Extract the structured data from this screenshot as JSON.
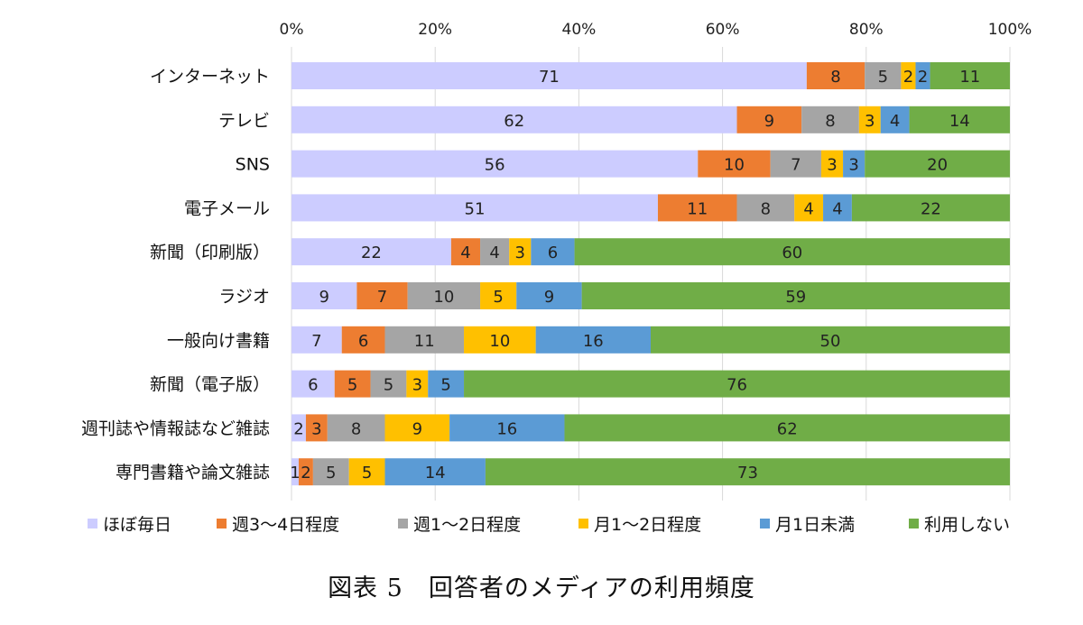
{
  "chart_data": {
    "type": "bar",
    "orientation": "horizontal",
    "stacked": "percent",
    "title": "図表 5　回答者のメディアの利用頻度",
    "categories": [
      "インターネット",
      "テレビ",
      "SNS",
      "電子メール",
      "新聞（印刷版）",
      "ラジオ",
      "一般向け書籍",
      "新聞（電子版）",
      "週刊誌や情報誌など雑誌",
      "専門書籍や論文雑誌"
    ],
    "series": [
      {
        "name": "ほぼ毎日",
        "color": "#CCCCFF",
        "values": [
          71,
          62,
          56,
          51,
          22,
          9,
          7,
          6,
          2,
          1
        ]
      },
      {
        "name": "週3～4日程度",
        "color": "#ED7D31",
        "values": [
          8,
          9,
          10,
          11,
          4,
          7,
          6,
          5,
          3,
          2
        ]
      },
      {
        "name": "週1～2日程度",
        "color": "#A5A5A5",
        "values": [
          5,
          8,
          7,
          8,
          4,
          10,
          11,
          5,
          8,
          5
        ]
      },
      {
        "name": "月1～2日程度",
        "color": "#FFC000",
        "values": [
          2,
          3,
          3,
          4,
          3,
          5,
          10,
          3,
          9,
          5
        ]
      },
      {
        "name": "月1日未満",
        "color": "#5B9BD5",
        "values": [
          2,
          4,
          3,
          4,
          6,
          9,
          16,
          5,
          16,
          14
        ]
      },
      {
        "name": "利用しない",
        "color": "#70AD47",
        "values": [
          11,
          14,
          20,
          22,
          60,
          59,
          50,
          76,
          62,
          73
        ]
      }
    ],
    "xaxis": {
      "ticks": [
        "0%",
        "20%",
        "40%",
        "60%",
        "80%",
        "100%"
      ],
      "range": [
        0,
        100
      ],
      "position": "top"
    },
    "grid": true,
    "legend": "bottom"
  }
}
